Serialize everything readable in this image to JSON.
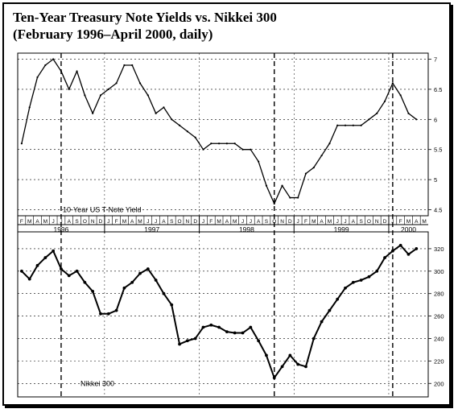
{
  "title": "Ten-Year Treasury Note Yields vs. Nikkei 300",
  "subtitle": "(February 1996–April 2000, daily)",
  "chart_data": [
    {
      "type": "line",
      "series": [
        {
          "name": "10-Year US T-Note Yield",
          "x": [
            "1996-02",
            "1996-03",
            "1996-04",
            "1996-05",
            "1996-06",
            "1996-07",
            "1996-08",
            "1996-09",
            "1996-10",
            "1996-11",
            "1996-12",
            "1997-01",
            "1997-02",
            "1997-03",
            "1997-04",
            "1997-05",
            "1997-06",
            "1997-07",
            "1997-08",
            "1997-09",
            "1997-10",
            "1997-11",
            "1997-12",
            "1998-01",
            "1998-02",
            "1998-03",
            "1998-04",
            "1998-05",
            "1998-06",
            "1998-07",
            "1998-08",
            "1998-09",
            "1998-10",
            "1998-11",
            "1998-12",
            "1999-01",
            "1999-02",
            "1999-03",
            "1999-04",
            "1999-05",
            "1999-06",
            "1999-07",
            "1999-08",
            "1999-09",
            "1999-10",
            "1999-11",
            "1999-12",
            "2000-01",
            "2000-02",
            "2000-03",
            "2000-04"
          ],
          "values": [
            5.6,
            6.2,
            6.7,
            6.9,
            7.0,
            6.8,
            6.5,
            6.8,
            6.4,
            6.1,
            6.4,
            6.5,
            6.6,
            6.9,
            6.9,
            6.6,
            6.4,
            6.1,
            6.2,
            6.0,
            5.9,
            5.8,
            5.7,
            5.5,
            5.6,
            5.6,
            5.6,
            5.6,
            5.5,
            5.5,
            5.3,
            4.9,
            4.6,
            4.9,
            4.7,
            4.7,
            5.1,
            5.2,
            5.4,
            5.6,
            5.9,
            5.9,
            5.9,
            5.9,
            6.0,
            6.1,
            6.3,
            6.6,
            6.4,
            6.1,
            6.0
          ]
        }
      ],
      "ylim": [
        4.4,
        7.1
      ],
      "yticks": [
        "7",
        "6.5",
        "6",
        "5.5",
        "5",
        "4.5"
      ],
      "annotation": "10-Year US T-Note Yield",
      "grid": true
    },
    {
      "type": "line",
      "series": [
        {
          "name": "Nikkei 300",
          "x": [
            "1996-02",
            "1996-03",
            "1996-04",
            "1996-05",
            "1996-06",
            "1996-07",
            "1996-08",
            "1996-09",
            "1996-10",
            "1996-11",
            "1996-12",
            "1997-01",
            "1997-02",
            "1997-03",
            "1997-04",
            "1997-05",
            "1997-06",
            "1997-07",
            "1997-08",
            "1997-09",
            "1997-10",
            "1997-11",
            "1997-12",
            "1998-01",
            "1998-02",
            "1998-03",
            "1998-04",
            "1998-05",
            "1998-06",
            "1998-07",
            "1998-08",
            "1998-09",
            "1998-10",
            "1998-11",
            "1998-12",
            "1999-01",
            "1999-02",
            "1999-03",
            "1999-04",
            "1999-05",
            "1999-06",
            "1999-07",
            "1999-08",
            "1999-09",
            "1999-10",
            "1999-11",
            "1999-12",
            "2000-01",
            "2000-02",
            "2000-03",
            "2000-04"
          ],
          "values": [
            300,
            293,
            305,
            312,
            318,
            302,
            296,
            300,
            290,
            282,
            262,
            262,
            265,
            285,
            290,
            298,
            302,
            292,
            280,
            270,
            235,
            238,
            240,
            250,
            252,
            250,
            246,
            245,
            245,
            250,
            238,
            225,
            205,
            215,
            225,
            217,
            215,
            240,
            255,
            265,
            275,
            285,
            290,
            292,
            295,
            300,
            312,
            318,
            323,
            315,
            320
          ]
        }
      ],
      "ylim": [
        188,
        335
      ],
      "yticks": [
        "320",
        "300",
        "280",
        "260",
        "240",
        "220",
        "200"
      ],
      "annotation": "Nikkei 300",
      "grid": true
    }
  ],
  "x_axis": {
    "month_labels": [
      "F",
      "M",
      "A",
      "M",
      "J",
      "J",
      "A",
      "S",
      "O",
      "N",
      "D",
      "J",
      "F",
      "M",
      "A",
      "M",
      "J",
      "J",
      "A",
      "S",
      "O",
      "N",
      "D",
      "J",
      "F",
      "M",
      "A",
      "M",
      "J",
      "J",
      "A",
      "S",
      "O",
      "N",
      "D",
      "J",
      "F",
      "M",
      "A",
      "M",
      "J",
      "J",
      "A",
      "S",
      "O",
      "N",
      "D",
      "J",
      "F",
      "M",
      "A",
      "M"
    ],
    "year_labels": [
      "1996",
      "1997",
      "1998",
      "1999",
      "2000"
    ]
  },
  "markers": [
    "1996-07",
    "1998-10",
    "2000-01"
  ]
}
